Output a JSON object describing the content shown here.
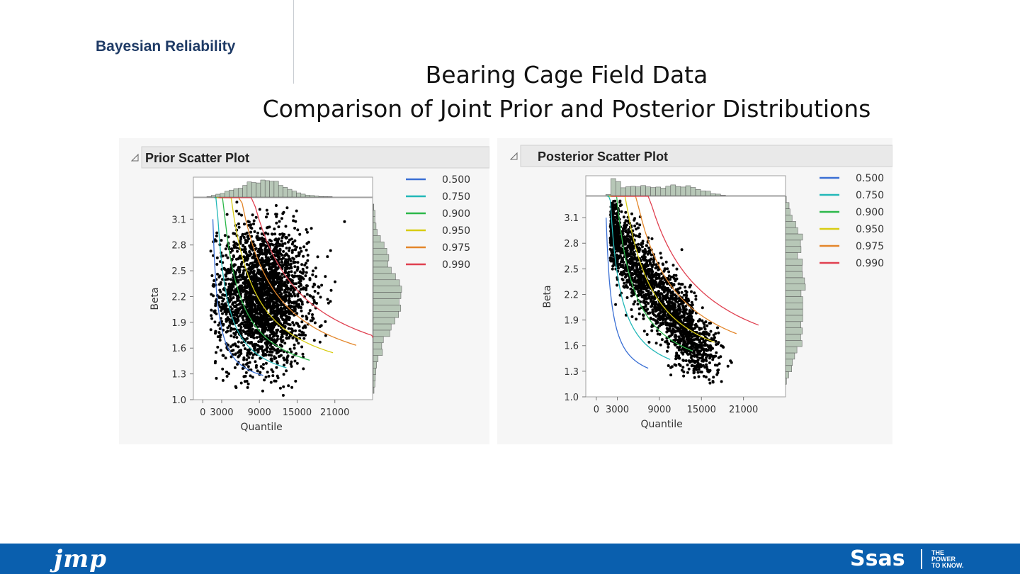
{
  "slide": {
    "header_label": "Bayesian Reliability",
    "title_line1": "Bearing Cage Field Data",
    "title_line2": "Comparison of Joint Prior and Posterior Distributions"
  },
  "footer": {
    "jmp_logo": "jmp",
    "sas_logo": "Ssas",
    "tagline": "THE\nPOWER\nTO KNOW."
  },
  "contour_levels": [
    {
      "level": "0.500",
      "color": "#3a6fd4"
    },
    {
      "level": "0.750",
      "color": "#22b8b8"
    },
    {
      "level": "0.900",
      "color": "#2cb84a"
    },
    {
      "level": "0.950",
      "color": "#d8cc12"
    },
    {
      "level": "0.975",
      "color": "#e3862a"
    },
    {
      "level": "0.990",
      "color": "#e04050"
    }
  ],
  "chart_data": [
    {
      "type": "scatter",
      "title": "Prior Scatter Plot",
      "xlabel": "Quantile",
      "ylabel": "Beta",
      "x_ticks": [
        "0",
        "3000",
        "9000",
        "15000",
        "21000"
      ],
      "y_ticks": [
        "1.0",
        "1.3",
        "1.6",
        "1.9",
        "2.2",
        "2.5",
        "2.8",
        "3.1"
      ],
      "xlim": [
        -1500,
        27000
      ],
      "ylim": [
        1.0,
        3.35
      ],
      "legend": [
        "0.500",
        "0.750",
        "0.900",
        "0.950",
        "0.975",
        "0.990"
      ],
      "cloud": {
        "center_quantile": 9500,
        "center_beta": 2.2,
        "spread_quantile": 3600,
        "spread_beta": 0.4
      },
      "marginal_histograms": true
    },
    {
      "type": "scatter",
      "title": "Posterior Scatter Plot",
      "xlabel": "Quantile",
      "ylabel": "Beta",
      "x_ticks": [
        "0",
        "3000",
        "9000",
        "15000",
        "21000"
      ],
      "y_ticks": [
        "1.0",
        "1.3",
        "1.6",
        "1.9",
        "2.2",
        "2.5",
        "2.8",
        "3.1"
      ],
      "xlim": [
        -1500,
        27000
      ],
      "ylim": [
        1.0,
        3.35
      ],
      "legend": [
        "0.500",
        "0.750",
        "0.900",
        "0.950",
        "0.975",
        "0.990"
      ],
      "cloud": {
        "center_quantile": 5500,
        "center_beta": 2.1,
        "spread_quantile": 2600,
        "spread_beta": 0.33
      },
      "marginal_histograms": true
    }
  ]
}
